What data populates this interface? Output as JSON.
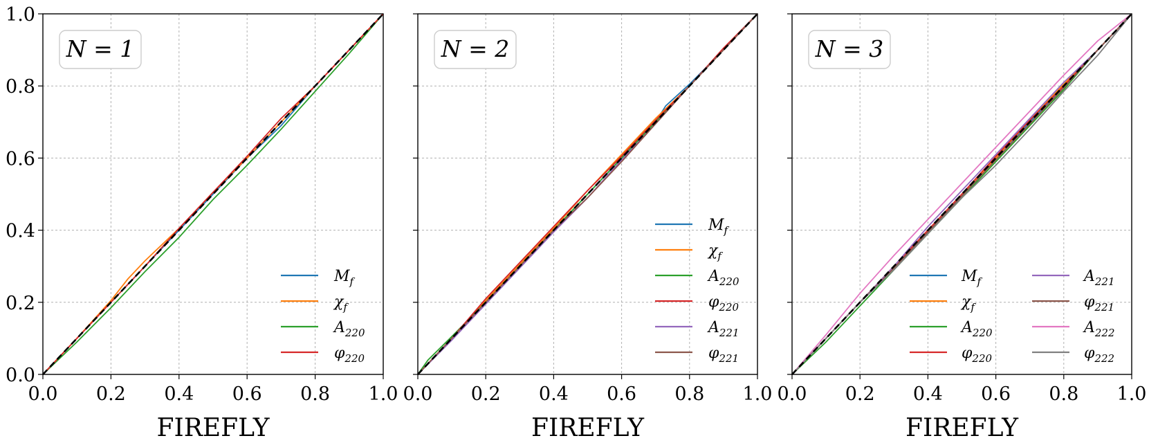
{
  "chart_data": [
    {
      "type": "line",
      "annotation": "N = 1",
      "xlabel": "FIREFLY",
      "ylabel": "",
      "xlim": [
        0,
        1
      ],
      "ylim": [
        0,
        1
      ],
      "xticks": [
        "0.0",
        "0.2",
        "0.4",
        "0.6",
        "0.8",
        "1.0"
      ],
      "yticks": [
        "0.0",
        "0.2",
        "0.4",
        "0.6",
        "0.8",
        "1.0"
      ],
      "grid": true,
      "legend_position": "lower-right",
      "legend_columns": 1,
      "series": [
        {
          "name": "M_f",
          "label": "Mf",
          "color": "#1f77b4",
          "x": [
            0,
            0.1,
            0.2,
            0.3,
            0.4,
            0.5,
            0.6,
            0.7,
            0.8,
            0.9,
            1.0
          ],
          "y": [
            0,
            0.1,
            0.2,
            0.3,
            0.4,
            0.5,
            0.6,
            0.69,
            0.8,
            0.9,
            1.0
          ]
        },
        {
          "name": "chi_f",
          "label": "χf",
          "color": "#ff7f0e",
          "x": [
            0,
            0.1,
            0.2,
            0.25,
            0.3,
            0.4,
            0.5,
            0.6,
            0.7,
            0.8,
            0.9,
            1.0
          ],
          "y": [
            0,
            0.1,
            0.205,
            0.265,
            0.315,
            0.405,
            0.505,
            0.6,
            0.7,
            0.8,
            0.9,
            1.0
          ]
        },
        {
          "name": "A_220",
          "label": "A220",
          "color": "#2ca02c",
          "x": [
            0,
            0.1,
            0.2,
            0.3,
            0.4,
            0.5,
            0.6,
            0.7,
            0.8,
            0.9,
            1.0
          ],
          "y": [
            0,
            0.09,
            0.185,
            0.285,
            0.38,
            0.485,
            0.58,
            0.68,
            0.785,
            0.89,
            1.0
          ]
        },
        {
          "name": "phi_220",
          "label": "φ220",
          "color": "#d62728",
          "x": [
            0,
            0.1,
            0.2,
            0.3,
            0.4,
            0.5,
            0.6,
            0.7,
            0.8,
            0.9,
            1.0
          ],
          "y": [
            0,
            0.1,
            0.2,
            0.3,
            0.405,
            0.505,
            0.605,
            0.71,
            0.8,
            0.9,
            1.0
          ]
        }
      ]
    },
    {
      "type": "line",
      "annotation": "N = 2",
      "xlabel": "FIREFLY",
      "ylabel": "",
      "xlim": [
        0,
        1
      ],
      "ylim": [
        0,
        1
      ],
      "xticks": [
        "0.0",
        "0.2",
        "0.4",
        "0.6",
        "0.8",
        "1.0"
      ],
      "yticks": [],
      "grid": true,
      "legend_position": "lower-right",
      "legend_columns": 1,
      "series": [
        {
          "name": "M_f",
          "label": "Mf",
          "color": "#1f77b4",
          "x": [
            0,
            0.1,
            0.2,
            0.3,
            0.4,
            0.5,
            0.6,
            0.7,
            0.73,
            0.8,
            0.9,
            1.0
          ],
          "y": [
            0,
            0.1,
            0.2,
            0.3,
            0.4,
            0.5,
            0.6,
            0.7,
            0.745,
            0.805,
            0.9,
            1.0
          ]
        },
        {
          "name": "chi_f",
          "label": "χf",
          "color": "#ff7f0e",
          "x": [
            0,
            0.1,
            0.2,
            0.3,
            0.4,
            0.5,
            0.6,
            0.7,
            0.8,
            0.9,
            1.0
          ],
          "y": [
            0,
            0.1,
            0.205,
            0.305,
            0.405,
            0.51,
            0.61,
            0.71,
            0.8,
            0.9,
            1.0
          ]
        },
        {
          "name": "A_220",
          "label": "A220",
          "color": "#2ca02c",
          "x": [
            0,
            0.03,
            0.1,
            0.2,
            0.3,
            0.4,
            0.5,
            0.6,
            0.7,
            0.8,
            0.9,
            1.0
          ],
          "y": [
            0,
            0.04,
            0.105,
            0.2,
            0.3,
            0.4,
            0.5,
            0.6,
            0.7,
            0.8,
            0.9,
            1.0
          ]
        },
        {
          "name": "phi_220",
          "label": "φ220",
          "color": "#d62728",
          "x": [
            0,
            0.1,
            0.2,
            0.3,
            0.4,
            0.5,
            0.6,
            0.7,
            0.8,
            0.9,
            1.0
          ],
          "y": [
            0,
            0.1,
            0.21,
            0.31,
            0.41,
            0.51,
            0.605,
            0.705,
            0.8,
            0.905,
            1.0
          ]
        },
        {
          "name": "A_221",
          "label": "A221",
          "color": "#9467bd",
          "x": [
            0,
            0.1,
            0.2,
            0.3,
            0.4,
            0.5,
            0.6,
            0.7,
            0.8,
            0.9,
            1.0
          ],
          "y": [
            0,
            0.095,
            0.195,
            0.295,
            0.395,
            0.49,
            0.595,
            0.695,
            0.8,
            0.9,
            1.0
          ]
        },
        {
          "name": "phi_221",
          "label": "φ221",
          "color": "#8c564b",
          "x": [
            0,
            0.1,
            0.2,
            0.3,
            0.4,
            0.5,
            0.6,
            0.7,
            0.8,
            0.9,
            1.0
          ],
          "y": [
            0,
            0.1,
            0.2,
            0.3,
            0.4,
            0.49,
            0.59,
            0.695,
            0.8,
            0.9,
            1.0
          ]
        }
      ]
    },
    {
      "type": "line",
      "annotation": "N = 3",
      "xlabel": "FIREFLY",
      "ylabel": "",
      "xlim": [
        0,
        1
      ],
      "ylim": [
        0,
        1
      ],
      "xticks": [
        "0.0",
        "0.2",
        "0.4",
        "0.6",
        "0.8",
        "1.0"
      ],
      "yticks": [],
      "grid": true,
      "legend_position": "lower-right",
      "legend_columns": 2,
      "series": [
        {
          "name": "M_f",
          "label": "Mf",
          "color": "#1f77b4",
          "x": [
            0,
            0.1,
            0.2,
            0.3,
            0.4,
            0.5,
            0.6,
            0.7,
            0.8,
            0.9,
            1.0
          ],
          "y": [
            0,
            0.1,
            0.2,
            0.3,
            0.4,
            0.5,
            0.6,
            0.7,
            0.8,
            0.9,
            1.0
          ]
        },
        {
          "name": "chi_f",
          "label": "χf",
          "color": "#ff7f0e",
          "x": [
            0,
            0.1,
            0.2,
            0.3,
            0.4,
            0.5,
            0.6,
            0.7,
            0.8,
            0.9,
            1.0
          ],
          "y": [
            0,
            0.1,
            0.2,
            0.3,
            0.4,
            0.5,
            0.6,
            0.705,
            0.805,
            0.9,
            1.0
          ]
        },
        {
          "name": "A_220",
          "label": "A220",
          "color": "#2ca02c",
          "x": [
            0,
            0.1,
            0.2,
            0.3,
            0.4,
            0.5,
            0.6,
            0.7,
            0.8,
            0.9,
            1.0
          ],
          "y": [
            0,
            0.09,
            0.19,
            0.29,
            0.39,
            0.49,
            0.59,
            0.69,
            0.79,
            0.9,
            1.0
          ]
        },
        {
          "name": "phi_220",
          "label": "φ220",
          "color": "#d62728",
          "x": [
            0,
            0.1,
            0.2,
            0.3,
            0.4,
            0.5,
            0.6,
            0.7,
            0.8,
            0.9,
            1.0
          ],
          "y": [
            0,
            0.1,
            0.2,
            0.3,
            0.4,
            0.5,
            0.605,
            0.705,
            0.8,
            0.9,
            1.0
          ]
        },
        {
          "name": "A_221",
          "label": "A221",
          "color": "#9467bd",
          "x": [
            0,
            0.1,
            0.2,
            0.3,
            0.4,
            0.5,
            0.6,
            0.7,
            0.8,
            0.9,
            1.0
          ],
          "y": [
            0,
            0.1,
            0.2,
            0.3,
            0.41,
            0.51,
            0.61,
            0.71,
            0.81,
            0.9,
            1.0
          ]
        },
        {
          "name": "phi_221",
          "label": "φ221",
          "color": "#8c564b",
          "x": [
            0,
            0.1,
            0.2,
            0.3,
            0.4,
            0.5,
            0.6,
            0.7,
            0.8,
            0.9,
            1.0
          ],
          "y": [
            0,
            0.1,
            0.2,
            0.295,
            0.395,
            0.495,
            0.595,
            0.695,
            0.795,
            0.9,
            1.0
          ]
        },
        {
          "name": "A_222",
          "label": "A222",
          "color": "#e377c2",
          "x": [
            0,
            0.1,
            0.2,
            0.3,
            0.4,
            0.5,
            0.6,
            0.7,
            0.8,
            0.9,
            1.0
          ],
          "y": [
            0,
            0.11,
            0.225,
            0.33,
            0.43,
            0.53,
            0.63,
            0.73,
            0.83,
            0.925,
            1.0
          ]
        },
        {
          "name": "phi_222",
          "label": "φ222",
          "color": "#7f7f7f",
          "x": [
            0,
            0.1,
            0.2,
            0.3,
            0.4,
            0.5,
            0.6,
            0.7,
            0.8,
            0.9,
            1.0
          ],
          "y": [
            0,
            0.1,
            0.2,
            0.29,
            0.39,
            0.49,
            0.58,
            0.68,
            0.785,
            0.885,
            1.0
          ]
        }
      ]
    }
  ]
}
